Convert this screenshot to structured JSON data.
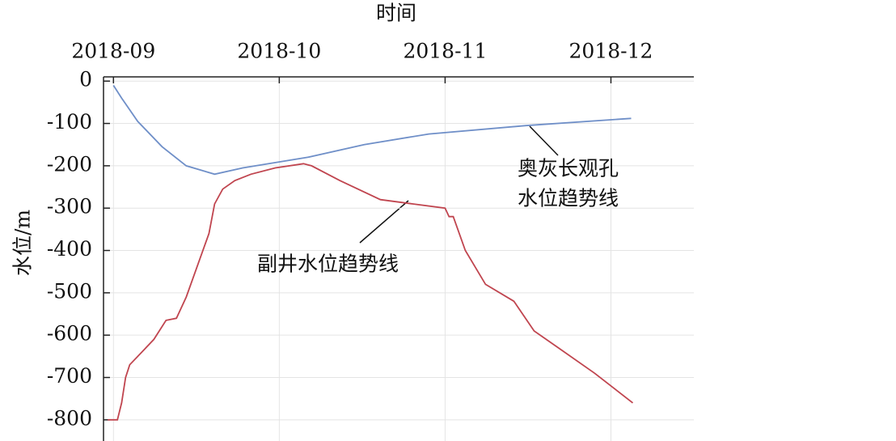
{
  "chart_data": {
    "type": "line",
    "title": "时间",
    "y_label": "水位/m",
    "xticks": [
      {
        "value": 0,
        "label": "2018-09"
      },
      {
        "value": 1,
        "label": "2018-10"
      },
      {
        "value": 2,
        "label": "2018-11"
      },
      {
        "value": 3,
        "label": "2018-12"
      }
    ],
    "xlim": [
      -0.06,
      3.5
    ],
    "ylim": [
      -850,
      10
    ],
    "yticks": [
      0,
      -100,
      -200,
      -300,
      -400,
      -500,
      -600,
      -700,
      -800
    ],
    "grid": true,
    "series": [
      {
        "name": "奥灰长观孔水位趋势线",
        "label_lines": [
          "奥灰长观孔",
          "水位趋势线"
        ],
        "color": "#6f8fc8",
        "x": [
          0,
          0.049,
          0.146,
          0.293,
          0.439,
          0.61,
          0.78,
          1.171,
          1.512,
          1.902,
          2.488,
          3.122
        ],
        "values": [
          -10,
          -40,
          -95,
          -155,
          -200,
          -220,
          -205,
          -180,
          -150,
          -125,
          -105,
          -88
        ]
      },
      {
        "name": "副井水位趋势线",
        "label_lines": [
          "副井水位趋势线"
        ],
        "color": "#c0454f",
        "x": [
          -0.034,
          0.024,
          0.049,
          0.073,
          0.098,
          0.171,
          0.244,
          0.317,
          0.38,
          0.439,
          0.512,
          0.576,
          0.61,
          0.659,
          0.732,
          0.829,
          0.976,
          1.146,
          1.195,
          1.366,
          1.61,
          1.805,
          2.0,
          2.024,
          2.049,
          2.122,
          2.244,
          2.415,
          2.537,
          2.683,
          2.902,
          3.132
        ],
        "values": [
          -800,
          -800,
          -760,
          -700,
          -670,
          -640,
          -610,
          -565,
          -560,
          -510,
          -430,
          -360,
          -290,
          -255,
          -235,
          -220,
          -205,
          -195,
          -200,
          -235,
          -280,
          -290,
          -300,
          -320,
          -320,
          -400,
          -480,
          -520,
          -590,
          -630,
          -690,
          -760
        ]
      }
    ]
  }
}
